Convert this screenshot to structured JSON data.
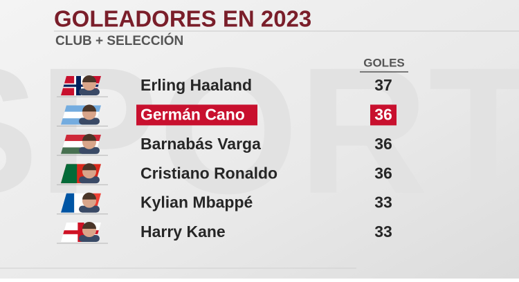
{
  "header": {
    "title": "GOLEADORES EN 2023",
    "subtitle": "CLUB + SELECCIÓN"
  },
  "table": {
    "column": "GOLES",
    "rows": [
      {
        "name": "Erling Haaland",
        "goals": "37"
      },
      {
        "name": "Germán Cano",
        "goals": "36"
      },
      {
        "name": "Barnabás Varga",
        "goals": "36"
      },
      {
        "name": "Cristiano Ronaldo",
        "goals": "36"
      },
      {
        "name": "Kylian Mbappé",
        "goals": "33"
      },
      {
        "name": "Harry Kane",
        "goals": "33"
      }
    ]
  }
}
